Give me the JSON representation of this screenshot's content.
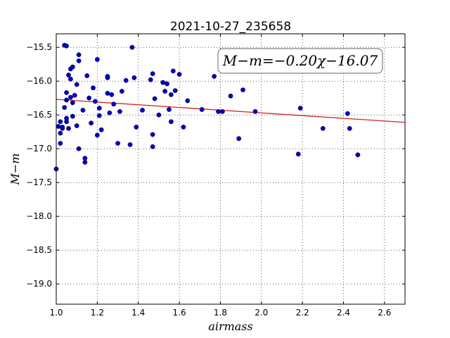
{
  "chart_data": {
    "type": "scatter",
    "title": "2021-10-27_235658",
    "xlabel": "airmass",
    "ylabel": "M−m",
    "xlim": [
      1.0,
      2.7
    ],
    "ylim": [
      -19.3,
      -15.3
    ],
    "grid": true,
    "xticks": [
      1.0,
      1.2,
      1.4,
      1.6,
      1.8,
      2.0,
      2.2,
      2.4,
      2.6
    ],
    "xtick_labels": [
      "1.0",
      "1.2",
      "1.4",
      "1.6",
      "1.8",
      "2.0",
      "2.2",
      "2.4",
      "2.6"
    ],
    "yticks": [
      -15.5,
      -16.0,
      -16.5,
      -17.0,
      -17.5,
      -18.0,
      -18.5,
      -19.0
    ],
    "ytick_labels": [
      "−15.5",
      "−16.0",
      "−16.5",
      "−17.0",
      "−17.5",
      "−18.0",
      "−18.5",
      "−19.0"
    ],
    "annotation": "M−m=−0.20χ−16.07",
    "annotation_position": "top-right",
    "fit": {
      "slope": -0.2,
      "intercept": -16.07,
      "color": "#d62020"
    },
    "point_color": "#0000c8",
    "points": [
      [
        1.0,
        -17.3
      ],
      [
        1.01,
        -16.67
      ],
      [
        1.02,
        -16.6
      ],
      [
        1.02,
        -16.92
      ],
      [
        1.02,
        -16.77
      ],
      [
        1.03,
        -16.7
      ],
      [
        1.03,
        -16.68
      ],
      [
        1.04,
        -15.47
      ],
      [
        1.05,
        -15.48
      ],
      [
        1.04,
        -16.39
      ],
      [
        1.05,
        -16.17
      ],
      [
        1.05,
        -16.55
      ],
      [
        1.05,
        -16.6
      ],
      [
        1.05,
        -16.28
      ],
      [
        1.06,
        -16.7
      ],
      [
        1.06,
        -15.91
      ],
      [
        1.07,
        -15.97
      ],
      [
        1.07,
        -16.24
      ],
      [
        1.07,
        -15.82
      ],
      [
        1.08,
        -15.79
      ],
      [
        1.08,
        -16.32
      ],
      [
        1.08,
        -16.52
      ],
      [
        1.09,
        -16.21
      ],
      [
        1.1,
        -16.05
      ],
      [
        1.1,
        -16.66
      ],
      [
        1.11,
        -15.61
      ],
      [
        1.11,
        -15.7
      ],
      [
        1.11,
        -17.0
      ],
      [
        1.13,
        -16.43
      ],
      [
        1.14,
        -17.14
      ],
      [
        1.14,
        -17.2
      ],
      [
        1.15,
        -15.92
      ],
      [
        1.16,
        -16.25
      ],
      [
        1.17,
        -16.62
      ],
      [
        1.18,
        -16.1
      ],
      [
        1.19,
        -16.3
      ],
      [
        1.2,
        -16.8
      ],
      [
        1.2,
        -15.68
      ],
      [
        1.21,
        -16.4
      ],
      [
        1.21,
        -16.51
      ],
      [
        1.22,
        -16.72
      ],
      [
        1.25,
        -15.95
      ],
      [
        1.25,
        -15.93
      ],
      [
        1.25,
        -16.18
      ],
      [
        1.26,
        -16.47
      ],
      [
        1.27,
        -16.2
      ],
      [
        1.28,
        -16.34
      ],
      [
        1.3,
        -16.92
      ],
      [
        1.31,
        -16.45
      ],
      [
        1.32,
        -16.15
      ],
      [
        1.34,
        -15.99
      ],
      [
        1.36,
        -16.94
      ],
      [
        1.37,
        -15.5
      ],
      [
        1.38,
        -15.95
      ],
      [
        1.39,
        -16.68
      ],
      [
        1.42,
        -16.43
      ],
      [
        1.46,
        -15.98
      ],
      [
        1.47,
        -16.97
      ],
      [
        1.47,
        -16.79
      ],
      [
        1.47,
        -15.89
      ],
      [
        1.48,
        -16.26
      ],
      [
        1.5,
        -16.5
      ],
      [
        1.52,
        -16.02
      ],
      [
        1.53,
        -16.15
      ],
      [
        1.54,
        -16.04
      ],
      [
        1.55,
        -16.42
      ],
      [
        1.56,
        -16.2
      ],
      [
        1.56,
        -16.6
      ],
      [
        1.57,
        -15.85
      ],
      [
        1.58,
        -16.14
      ],
      [
        1.6,
        -15.9
      ],
      [
        1.62,
        -16.68
      ],
      [
        1.64,
        -16.29
      ],
      [
        1.71,
        -16.42
      ],
      [
        1.77,
        -15.93
      ],
      [
        1.79,
        -16.45
      ],
      [
        1.81,
        -16.45
      ],
      [
        1.85,
        -16.22
      ],
      [
        1.89,
        -16.85
      ],
      [
        1.91,
        -16.13
      ],
      [
        1.97,
        -16.45
      ],
      [
        2.18,
        -17.08
      ],
      [
        2.19,
        -16.4
      ],
      [
        2.3,
        -16.7
      ],
      [
        2.42,
        -16.48
      ],
      [
        2.43,
        -16.7
      ],
      [
        2.47,
        -17.09
      ]
    ]
  }
}
